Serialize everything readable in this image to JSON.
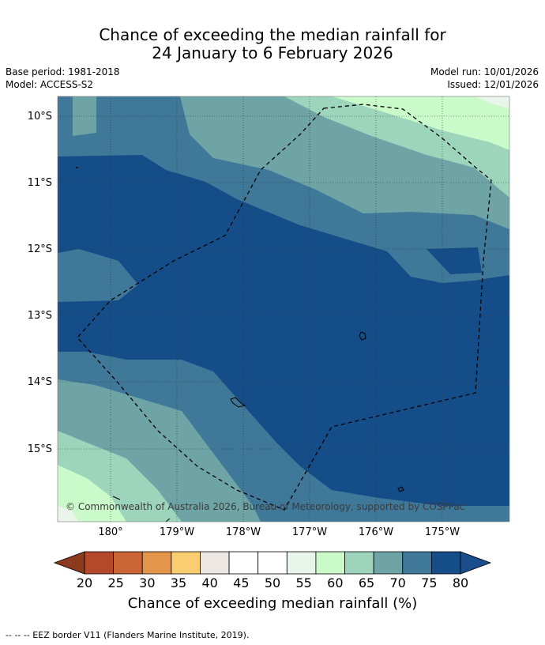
{
  "title": {
    "line1": "Chance of exceeding the median rainfall for",
    "line2": "24 January to 6 February 2026"
  },
  "meta": {
    "base_period": "Base period: 1981-2018",
    "model": "Model: ACCESS-S2",
    "model_run": "Model run: 10/01/2026",
    "issued": "Issued: 12/01/2026"
  },
  "map": {
    "lat_labels": [
      "10°S",
      "11°S",
      "12°S",
      "13°S",
      "14°S",
      "15°S"
    ],
    "lon_labels": [
      "180°",
      "179°W",
      "178°W",
      "177°W",
      "176°W",
      "175°W"
    ],
    "copyright": "© Commonwealth of Australia 2026, Bureau of Meteorology, supported by COSPPac",
    "extent": {
      "lon_min": 179.2,
      "lon_max": -174.0,
      "lat_min": -16.1,
      "lat_max": -9.7
    }
  },
  "colorbar": {
    "ticks": [
      "20",
      "25",
      "30",
      "35",
      "40",
      "45",
      "50",
      "55",
      "60",
      "65",
      "70",
      "75",
      "80"
    ],
    "under_color": "#8c3a1e",
    "over_color": "#1a4e8a",
    "colors": [
      "#b5482a",
      "#cc6536",
      "#e3954b",
      "#f9cd70",
      "#ece7e3",
      "#ffffff",
      "#ffffff",
      "#e9f5ea",
      "#caf9ca",
      "#9dd4bc",
      "#6ea4a6",
      "#40789a",
      "#154d89"
    ],
    "label": "Chance of exceeding median rainfall (%)"
  },
  "footnote": "--  --  -- EEZ border V11 (Flanders Marine Institute, 2019)."
}
